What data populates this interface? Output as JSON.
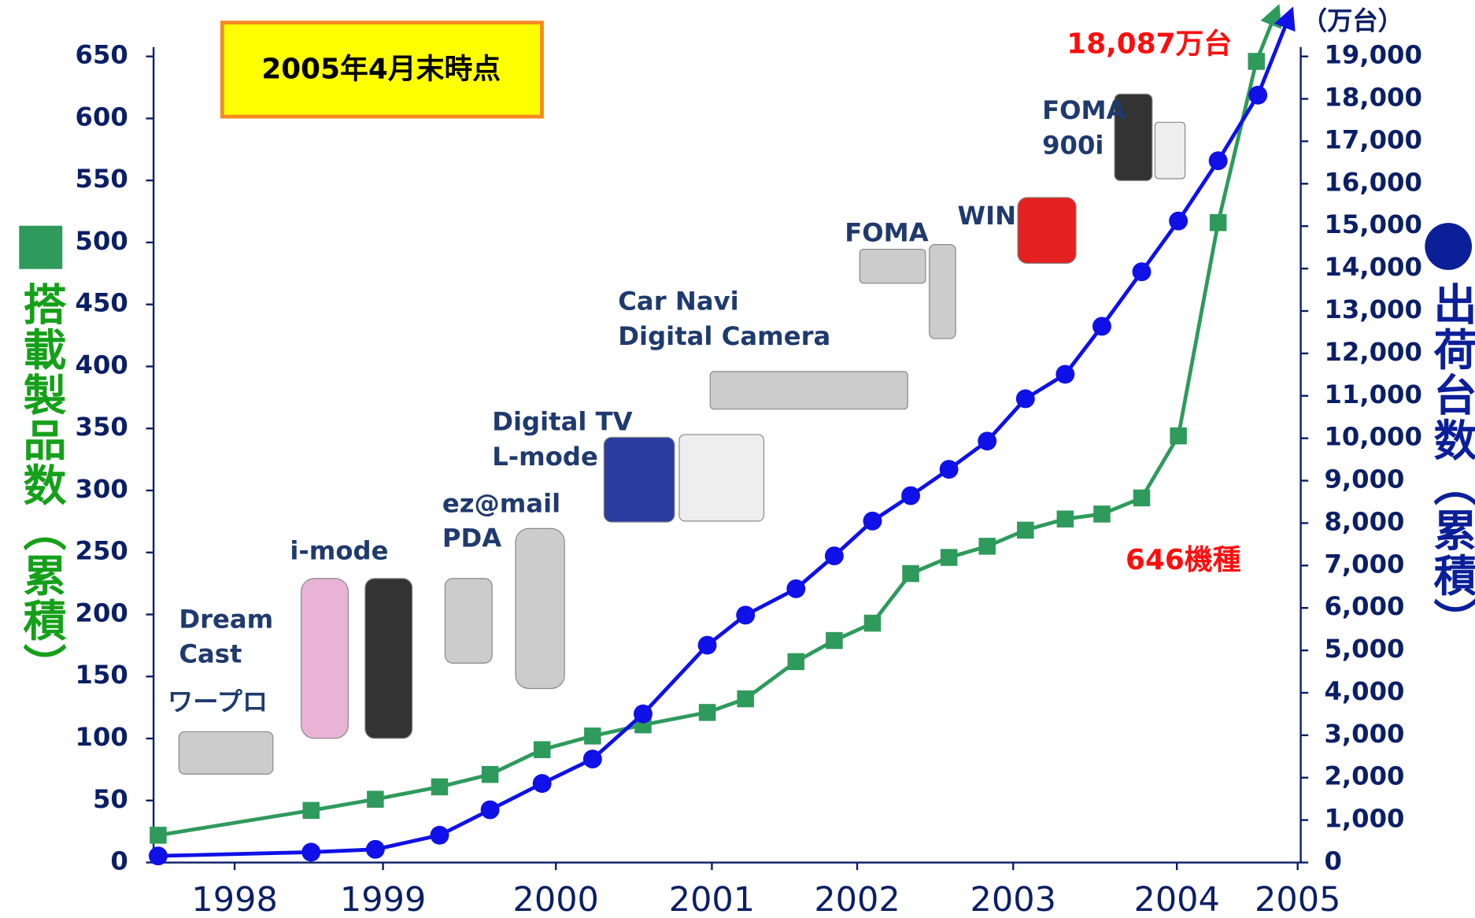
{
  "chart_data": {
    "type": "line",
    "annotations": [
      {
        "text": "2005年4月末時点"
      },
      {
        "text": "18,087万台"
      },
      {
        "text": "646機種"
      },
      {
        "text": "（万台）"
      },
      {
        "lines": [
          "Dream",
          "Cast"
        ]
      },
      {
        "text": "ワープロ"
      },
      {
        "text": "i-mode"
      },
      {
        "lines": [
          "ez@mail",
          "PDA"
        ]
      },
      {
        "lines": [
          "Digital TV",
          "L-mode"
        ]
      },
      {
        "lines": [
          "Car Navi",
          "Digital Camera"
        ]
      },
      {
        "text": "FOMA"
      },
      {
        "text": "WIN"
      },
      {
        "lines": [
          "FOMA",
          "900i"
        ]
      }
    ],
    "ylabel": "搭載製品数（累積）",
    "y2label": "出荷台数（累積）",
    "xlim": [
      1998,
      2005.5
    ],
    "xticks": [
      {
        "value": 1998.53,
        "label": "1998"
      },
      {
        "value": 1999.5,
        "label": "1999"
      },
      {
        "value": 2000.63,
        "label": "2000"
      },
      {
        "value": 2001.65,
        "label": "2001"
      },
      {
        "value": 2002.6,
        "label": "2002"
      },
      {
        "value": 2003.62,
        "label": "2003"
      },
      {
        "value": 2004.69,
        "label": "2004"
      },
      {
        "value": 2005.48,
        "label": "2005"
      }
    ],
    "ylim": [
      0,
      650
    ],
    "yticks": [
      0,
      50,
      100,
      150,
      200,
      250,
      300,
      350,
      400,
      450,
      500,
      550,
      600,
      650
    ],
    "y2lim": [
      0,
      19000
    ],
    "y2ticks": [
      0,
      {
        "value": 1000,
        "label": "1,000"
      },
      {
        "value": 2000,
        "label": "2,000"
      },
      {
        "value": 3000,
        "label": "3,000"
      },
      {
        "value": 4000,
        "label": "4,000"
      },
      {
        "value": 5000,
        "label": "5,000"
      },
      {
        "value": 6000,
        "label": "6,000"
      },
      {
        "value": 7000,
        "label": "7,000"
      },
      {
        "value": 8000,
        "label": "8,000"
      },
      {
        "value": 9000,
        "label": "9,000"
      },
      {
        "value": 10000,
        "label": "10,000"
      },
      {
        "value": 11000,
        "label": "11,000"
      },
      {
        "value": 12000,
        "label": "12,000"
      },
      {
        "value": 13000,
        "label": "13,000"
      },
      {
        "value": 14000,
        "label": "14,000"
      },
      {
        "value": 15000,
        "label": "15,000"
      },
      {
        "value": 16000,
        "label": "16,000"
      },
      {
        "value": 17000,
        "label": "17,000"
      },
      {
        "value": 18000,
        "label": "18,000"
      },
      {
        "value": 19000,
        "label": "19,000"
      }
    ],
    "series": [
      {
        "color": "#2e9a5c",
        "marker": "square",
        "x": [
          1998.03,
          1999.03,
          1999.45,
          1999.87,
          2000.2,
          2000.54,
          2000.87,
          2001.2,
          2001.62,
          2001.87,
          2002.2,
          2002.45,
          2002.7,
          2002.95,
          2003.2,
          2003.45,
          2003.7,
          2003.96,
          2004.2,
          2004.46,
          2004.7,
          2004.96,
          2005.21
        ],
        "values": [
          22,
          42,
          51,
          61,
          71,
          91,
          102,
          111,
          121,
          132,
          162,
          179,
          193,
          233,
          246,
          255,
          268,
          277,
          281,
          294,
          344,
          516,
          646
        ]
      },
      {
        "color": "#1010e8",
        "marker": "circle",
        "axis": "y2",
        "x": [
          1998.03,
          1999.03,
          1999.45,
          1999.87,
          2000.2,
          2000.54,
          2000.87,
          2001.2,
          2001.62,
          2001.87,
          2002.2,
          2002.45,
          2002.7,
          2002.95,
          2003.2,
          2003.45,
          2003.7,
          2003.96,
          2004.2,
          2004.46,
          2004.7,
          2004.96,
          2005.22
        ],
        "values": [
          155,
          244,
          310,
          643,
          1242,
          1863,
          2439,
          3503,
          5122,
          5831,
          6452,
          7228,
          8049,
          8647,
          9268,
          9933,
          10931,
          11508,
          12639,
          13925,
          15122,
          16541,
          18087
        ]
      }
    ]
  }
}
